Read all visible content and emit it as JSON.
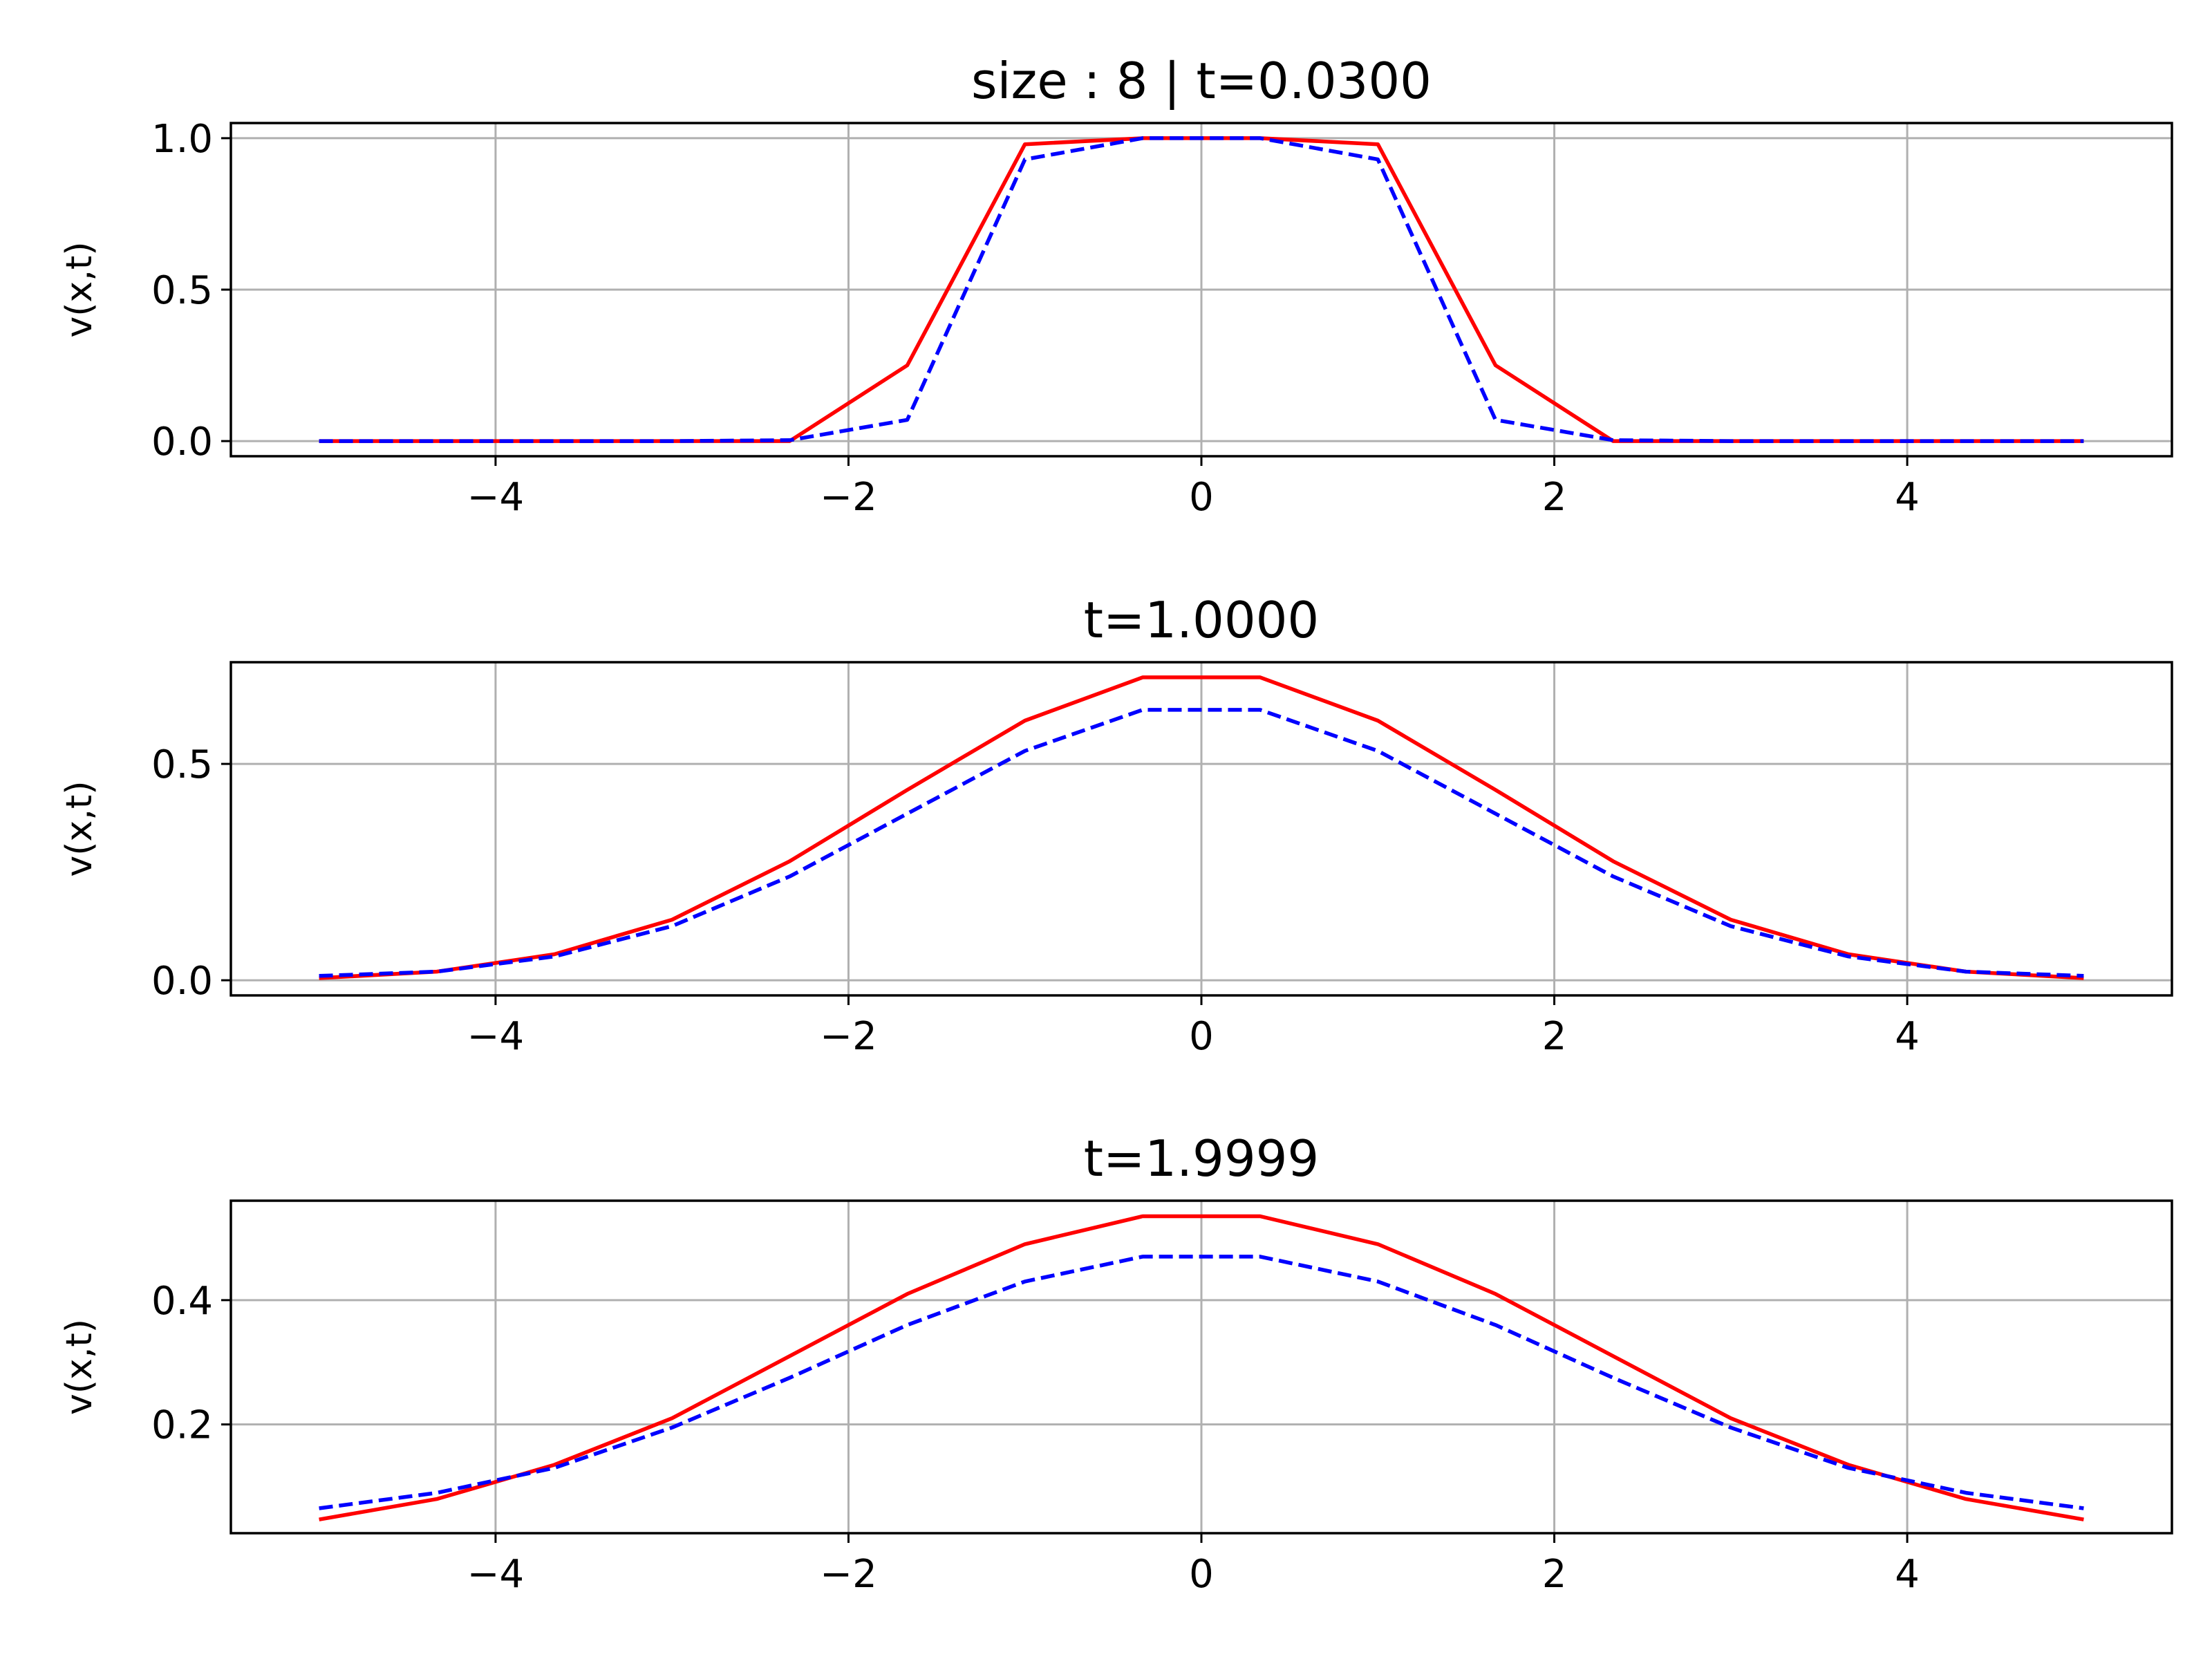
{
  "chart_data": [
    {
      "type": "line",
      "title": "size : 8 | t=0.0300",
      "xlabel": "",
      "ylabel": "v(x,t)",
      "xlim": [
        -5.5,
        5.5
      ],
      "ylim": [
        -0.05,
        1.05
      ],
      "xticks": [
        -4,
        -2,
        0,
        2,
        4
      ],
      "xtick_labels": [
        "−4",
        "−2",
        "0",
        "2",
        "4"
      ],
      "yticks": [
        0.0,
        0.5,
        1.0
      ],
      "ytick_labels": [
        "0.0",
        "0.5",
        "1.0"
      ],
      "grid": true,
      "x": [
        -5,
        -4.333,
        -3.667,
        -3,
        -2.333,
        -1.667,
        -1,
        -0.333,
        0.333,
        1,
        1.667,
        2.333,
        3,
        3.667,
        4.333,
        5
      ],
      "series": [
        {
          "color": "#ff0000",
          "style": "solid",
          "values": [
            0,
            0,
            0,
            0,
            0,
            0.25,
            0.98,
            1.0,
            1.0,
            0.98,
            0.25,
            0,
            0,
            0,
            0,
            0
          ]
        },
        {
          "color": "#0000ff",
          "style": "dashed",
          "values": [
            0,
            0,
            0,
            0,
            0.003,
            0.07,
            0.93,
            1.0,
            1.0,
            0.93,
            0.07,
            0.003,
            0,
            0,
            0,
            0
          ]
        }
      ]
    },
    {
      "type": "line",
      "title": "t=1.0000",
      "xlabel": "",
      "ylabel": "v(x,t)",
      "xlim": [
        -5.5,
        5.5
      ],
      "ylim": [
        -0.035,
        0.735
      ],
      "xticks": [
        -4,
        -2,
        0,
        2,
        4
      ],
      "xtick_labels": [
        "−4",
        "−2",
        "0",
        "2",
        "4"
      ],
      "yticks": [
        0.0,
        0.5
      ],
      "ytick_labels": [
        "0.0",
        "0.5"
      ],
      "grid": true,
      "x": [
        -5,
        -4.333,
        -3.667,
        -3,
        -2.333,
        -1.667,
        -1,
        -0.333,
        0.333,
        1,
        1.667,
        2.333,
        3,
        3.667,
        4.333,
        5
      ],
      "series": [
        {
          "color": "#ff0000",
          "style": "solid",
          "values": [
            0.005,
            0.02,
            0.06,
            0.14,
            0.275,
            0.44,
            0.6,
            0.7,
            0.7,
            0.6,
            0.44,
            0.275,
            0.14,
            0.06,
            0.02,
            0.005
          ]
        },
        {
          "color": "#0000ff",
          "style": "dashed",
          "values": [
            0.01,
            0.02,
            0.055,
            0.125,
            0.24,
            0.385,
            0.53,
            0.625,
            0.625,
            0.53,
            0.385,
            0.24,
            0.125,
            0.055,
            0.02,
            0.01
          ]
        }
      ]
    },
    {
      "type": "line",
      "title": "t=1.9999",
      "xlabel": "",
      "ylabel": "v(x,t)",
      "xlim": [
        -5.5,
        5.5
      ],
      "ylim": [
        0.025,
        0.56
      ],
      "xticks": [
        -4,
        -2,
        0,
        2,
        4
      ],
      "xtick_labels": [
        "−4",
        "−2",
        "0",
        "2",
        "4"
      ],
      "yticks": [
        0.2,
        0.4
      ],
      "ytick_labels": [
        "0.2",
        "0.4"
      ],
      "grid": true,
      "x": [
        -5,
        -4.333,
        -3.667,
        -3,
        -2.333,
        -1.667,
        -1,
        -0.333,
        0.333,
        1,
        1.667,
        2.333,
        3,
        3.667,
        4.333,
        5
      ],
      "series": [
        {
          "color": "#ff0000",
          "style": "solid",
          "values": [
            0.047,
            0.08,
            0.135,
            0.21,
            0.31,
            0.41,
            0.49,
            0.535,
            0.535,
            0.49,
            0.41,
            0.31,
            0.21,
            0.135,
            0.08,
            0.047
          ]
        },
        {
          "color": "#0000ff",
          "style": "dashed",
          "values": [
            0.065,
            0.09,
            0.13,
            0.195,
            0.275,
            0.36,
            0.43,
            0.47,
            0.47,
            0.43,
            0.36,
            0.275,
            0.195,
            0.13,
            0.09,
            0.065
          ]
        }
      ]
    }
  ]
}
